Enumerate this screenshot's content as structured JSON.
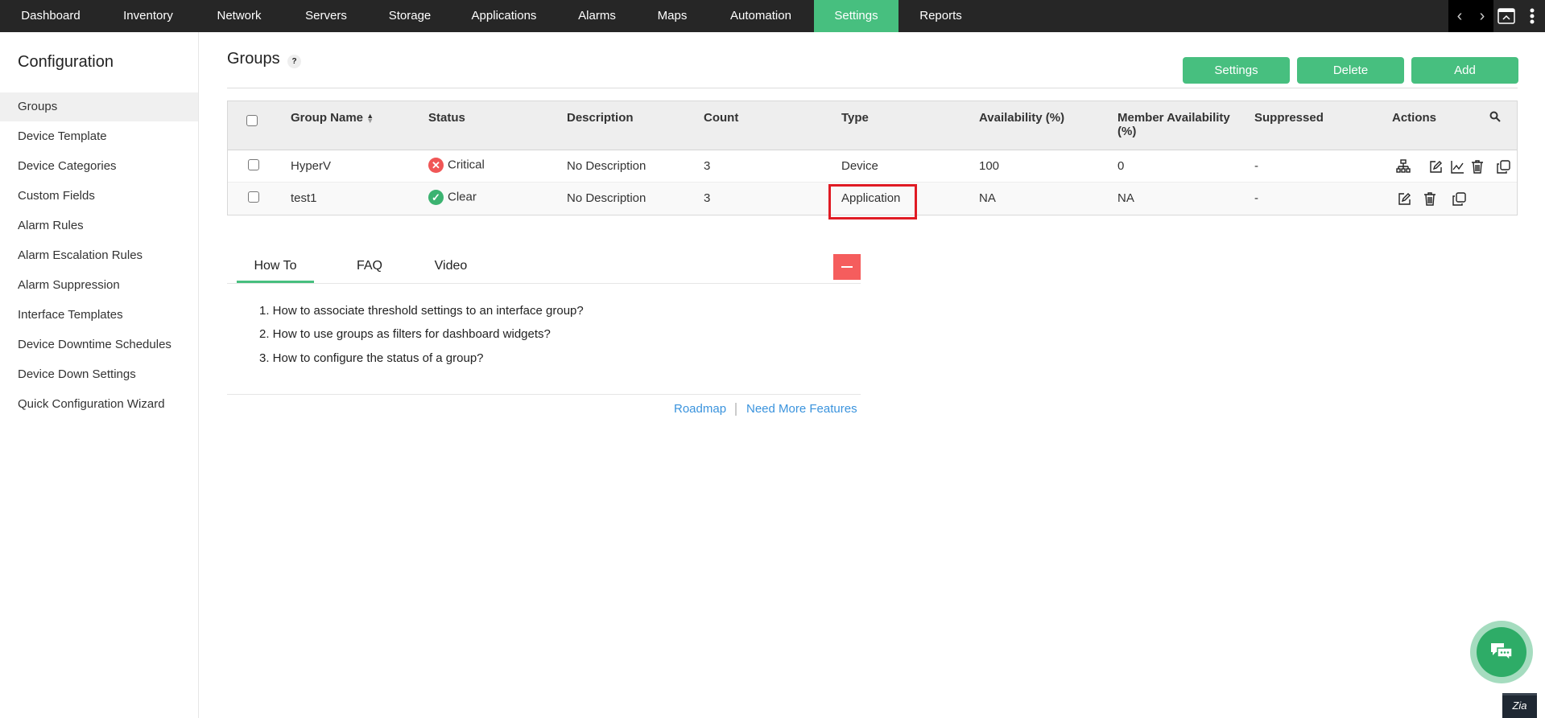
{
  "topnav": {
    "items": [
      "Dashboard",
      "Inventory",
      "Network",
      "Servers",
      "Storage",
      "Applications",
      "Alarms",
      "Maps",
      "Automation",
      "Settings",
      "Reports"
    ],
    "active": "Settings"
  },
  "sidebar": {
    "title": "Configuration",
    "items": [
      "Groups",
      "Device Template",
      "Device Categories",
      "Custom Fields",
      "Alarm Rules",
      "Alarm Escalation Rules",
      "Alarm Suppression",
      "Interface Templates",
      "Device Downtime Schedules",
      "Device Down Settings",
      "Quick Configuration Wizard"
    ],
    "active": "Groups"
  },
  "main": {
    "title": "Groups",
    "help": "?",
    "buttons": {
      "settings": "Settings",
      "delete": "Delete",
      "add": "Add"
    }
  },
  "table": {
    "headers": [
      "Group Name",
      "Status",
      "Description",
      "Count",
      "Type",
      "Availability (%)",
      "Member Availability (%)",
      "Suppressed",
      "Actions"
    ],
    "rows": [
      {
        "name": "HyperV",
        "status": "Critical",
        "description": "No Description",
        "count": "3",
        "type": "Device",
        "availability": "100",
        "member_availability": "0",
        "suppressed": "-"
      },
      {
        "name": "test1",
        "status": "Clear",
        "description": "No Description",
        "count": "3",
        "type": "Application",
        "availability": "NA",
        "member_availability": "NA",
        "suppressed": "-"
      }
    ]
  },
  "help": {
    "tabs": [
      "How To",
      "FAQ",
      "Video"
    ],
    "active": "How To",
    "items": [
      "1. How to associate threshold settings to an interface group?",
      "2. How to use groups as filters for dashboard widgets?",
      "3. How to configure the status of a group?"
    ],
    "links": {
      "roadmap": "Roadmap",
      "features": "Need More Features"
    }
  },
  "zia": "Zia",
  "colors": {
    "accent": "#47bf7f",
    "critical": "#f05656",
    "clear": "#3cb371",
    "highlight": "#e01b24"
  }
}
